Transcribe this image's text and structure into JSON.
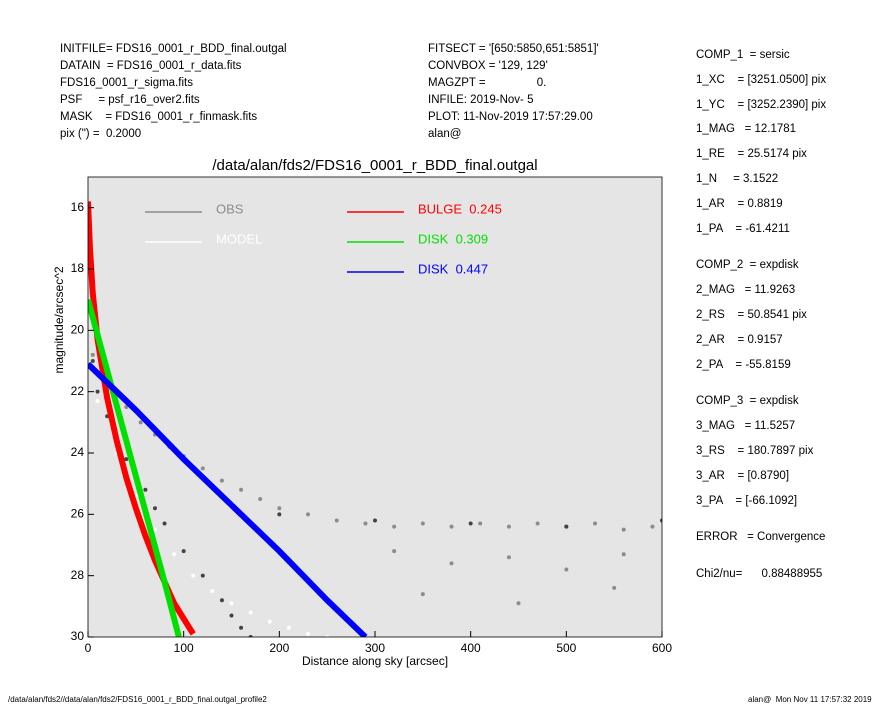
{
  "header": {
    "left": [
      "INITFILE= FDS16_0001_r_BDD_final.outgal",
      "DATAIN  = FDS16_0001_r_data.fits",
      "FDS16_0001_r_sigma.fits",
      "PSF     = psf_r16_over2.fits",
      "MASK    = FDS16_0001_r_finmask.fits",
      "pix (\") =  0.2000"
    ],
    "middle": [
      "FITSECT = '[650:5850,651:5851]'",
      "CONVBOX = '129, 129'",
      "MAGZPT =                0.",
      "INFILE: 2019-Nov- 5",
      "PLOT: 11-Nov-2019 17:57:29.00",
      "alan@"
    ]
  },
  "parameters": [
    [
      "COMP_1  = sersic",
      "1_XC    = [3251.0500] pix",
      "1_YC    = [3252.2390] pix",
      "1_MAG   = 12.1781",
      "1_RE    = 25.5174 pix",
      "1_N     = 3.1522",
      "1_AR    = 0.8819",
      "1_PA    = -61.4211"
    ],
    [
      "COMP_2  = expdisk",
      "2_MAG   = 11.9263",
      "2_RS    = 50.8541 pix",
      "2_AR    = 0.9157",
      "2_PA    = -55.8159"
    ],
    [
      "COMP_3  = expdisk",
      "3_MAG   = 11.5257",
      "3_RS    = 180.7897 pix",
      "3_AR    = [0.8790]",
      "3_PA    = [-66.1092]"
    ],
    [
      "ERROR   = Convergence"
    ],
    [
      "Chi2/nu=      0.88488955"
    ]
  ],
  "footer": {
    "left": "/data/alan/fds2//data/alan/fds2/FDS16_0001_r_BDD_final.outgal_profile2",
    "right": "alan@  Mon Nov 11 17:57:32 2019"
  },
  "chart_data": {
    "type": "scatter",
    "title": "/data/alan/fds2/FDS16_0001_r_BDD_final.outgal",
    "x_label": "Distance along sky [arcsec]",
    "y_label": "magnitude/arcsec^2",
    "xlim": [
      0,
      600
    ],
    "ylim": [
      30,
      15
    ],
    "xticks": [
      0,
      100,
      200,
      300,
      400,
      500,
      600
    ],
    "yticks": [
      16,
      18,
      20,
      22,
      24,
      26,
      28,
      30
    ],
    "background": "#e5e5e5",
    "series": [
      {
        "name": "OBS",
        "color": "#8c8c8c",
        "mode": "markers",
        "x": [
          5,
          15,
          25,
          40,
          55,
          70,
          85,
          100,
          120,
          140,
          160,
          180,
          200,
          230,
          260,
          290,
          320,
          350,
          380,
          410,
          440,
          470,
          500,
          530,
          560,
          590,
          320,
          380,
          440,
          500,
          560,
          350,
          450,
          550
        ],
        "values": [
          20.8,
          21.4,
          21.9,
          22.5,
          23.0,
          23.4,
          23.8,
          24.1,
          24.5,
          24.9,
          25.2,
          25.5,
          25.8,
          26.0,
          26.2,
          26.3,
          26.4,
          26.3,
          26.4,
          26.3,
          26.4,
          26.3,
          26.4,
          26.3,
          26.5,
          26.4,
          27.2,
          27.6,
          27.4,
          27.8,
          27.3,
          28.6,
          28.9,
          28.4
        ]
      },
      {
        "color": "#444444",
        "mode": "markers",
        "x": [
          5,
          10,
          20,
          30,
          40,
          50,
          60,
          70,
          80,
          100,
          120,
          140,
          150,
          160,
          170,
          200,
          300,
          400,
          500,
          600
        ],
        "values": [
          21.0,
          22.0,
          22.8,
          23.5,
          24.2,
          24.7,
          25.2,
          25.8,
          26.3,
          27.2,
          28.0,
          28.8,
          29.3,
          29.7,
          30.0,
          26.0,
          26.2,
          26.3,
          26.4,
          26.2
        ]
      },
      {
        "name": "MODEL",
        "color": "#ffffff",
        "mode": "markers",
        "x": [
          10,
          30,
          50,
          70,
          90,
          110,
          130,
          150,
          170,
          190,
          210,
          230,
          250
        ],
        "values": [
          22.3,
          24.0,
          25.4,
          26.5,
          27.3,
          28.0,
          28.5,
          28.9,
          29.2,
          29.5,
          29.7,
          29.9,
          30.0
        ]
      },
      {
        "name": "BULGE  0.245",
        "color": "#ff0000",
        "mode": "line",
        "x": [
          0,
          2,
          5,
          10,
          20,
          30,
          40,
          50,
          60,
          70,
          80,
          90,
          100,
          110
        ],
        "values": [
          15.8,
          17.3,
          18.8,
          20.3,
          22.2,
          23.6,
          24.8,
          25.8,
          26.7,
          27.5,
          28.2,
          28.9,
          29.4,
          29.9
        ]
      },
      {
        "name": "DISK  0.309",
        "color": "#00e000",
        "mode": "line",
        "x": [
          0,
          20,
          40,
          60,
          80,
          95
        ],
        "values": [
          19.0,
          21.3,
          23.6,
          25.9,
          28.2,
          30.0
        ]
      },
      {
        "name": "DISK  0.447",
        "color": "#0000ff",
        "mode": "line",
        "x": [
          0,
          50,
          100,
          150,
          200,
          250,
          290
        ],
        "values": [
          21.1,
          22.6,
          24.2,
          25.7,
          27.2,
          28.8,
          30.0
        ]
      }
    ]
  }
}
